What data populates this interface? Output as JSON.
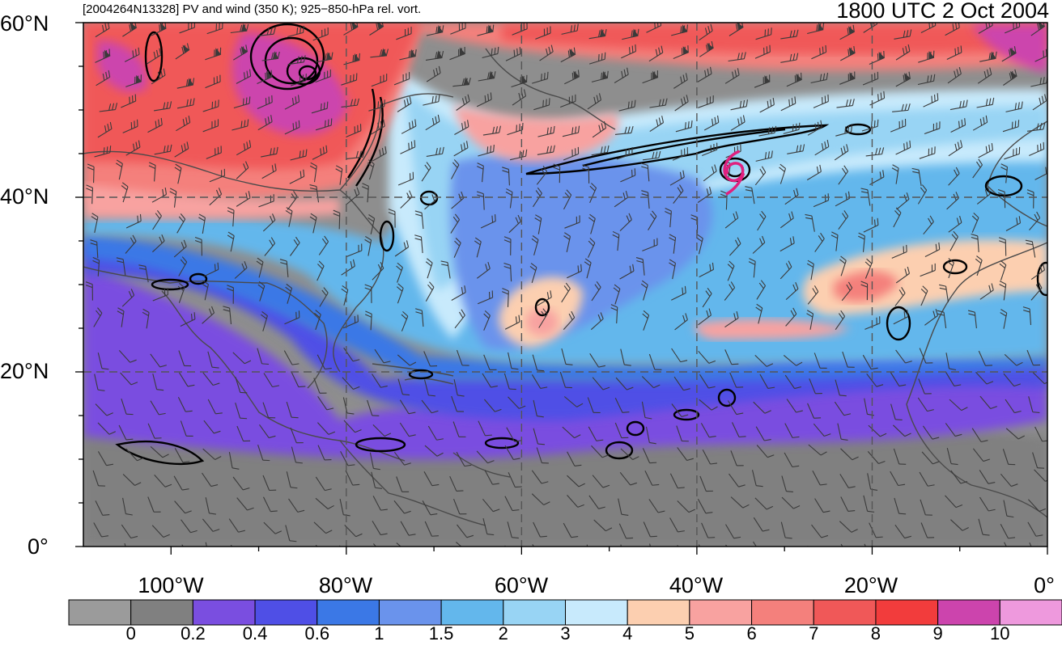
{
  "header": {
    "left_title": "[2004264N13328] PV and wind (350 K); 925−850-hPa rel. vort.",
    "right_title": "1800 UTC 2 Oct 2004"
  },
  "map": {
    "lat_labels": [
      "60°N",
      "40°N",
      "20°N",
      "0°"
    ],
    "lon_labels": [
      "100°W",
      "80°W",
      "60°W",
      "40°W",
      "20°W",
      "0°"
    ],
    "extent": {
      "lon_min": -110,
      "lon_max": 0,
      "lat_min": 0,
      "lat_max": 60
    },
    "gridlines": {
      "lats": [
        20,
        40
      ],
      "lons": [
        -80,
        -60,
        -40,
        -20
      ],
      "style": "dashed"
    },
    "storm_symbol": {
      "lon": -36,
      "lat": 43,
      "color": "#e0207e"
    }
  },
  "colorbar": {
    "labels": [
      "0",
      "0.2",
      "0.4",
      "0.6",
      "1",
      "1.5",
      "2",
      "3",
      "4",
      "5",
      "6",
      "7",
      "8",
      "9",
      "10"
    ],
    "colors": [
      "#9b9b9b",
      "#808080",
      "#7a4ee0",
      "#4f4fe6",
      "#3b78e6",
      "#6a93ec",
      "#63b7ec",
      "#98d4f4",
      "#c8eafc",
      "#fccfb0",
      "#f8a2a0",
      "#f4807c",
      "#f05858",
      "#f23c3c",
      "#cc44ad",
      "#ee99dd"
    ]
  },
  "colors": {
    "frame": "#000000",
    "coast": "#4a4a4a",
    "contour": "#000000",
    "barb": "#3a3a3a"
  }
}
